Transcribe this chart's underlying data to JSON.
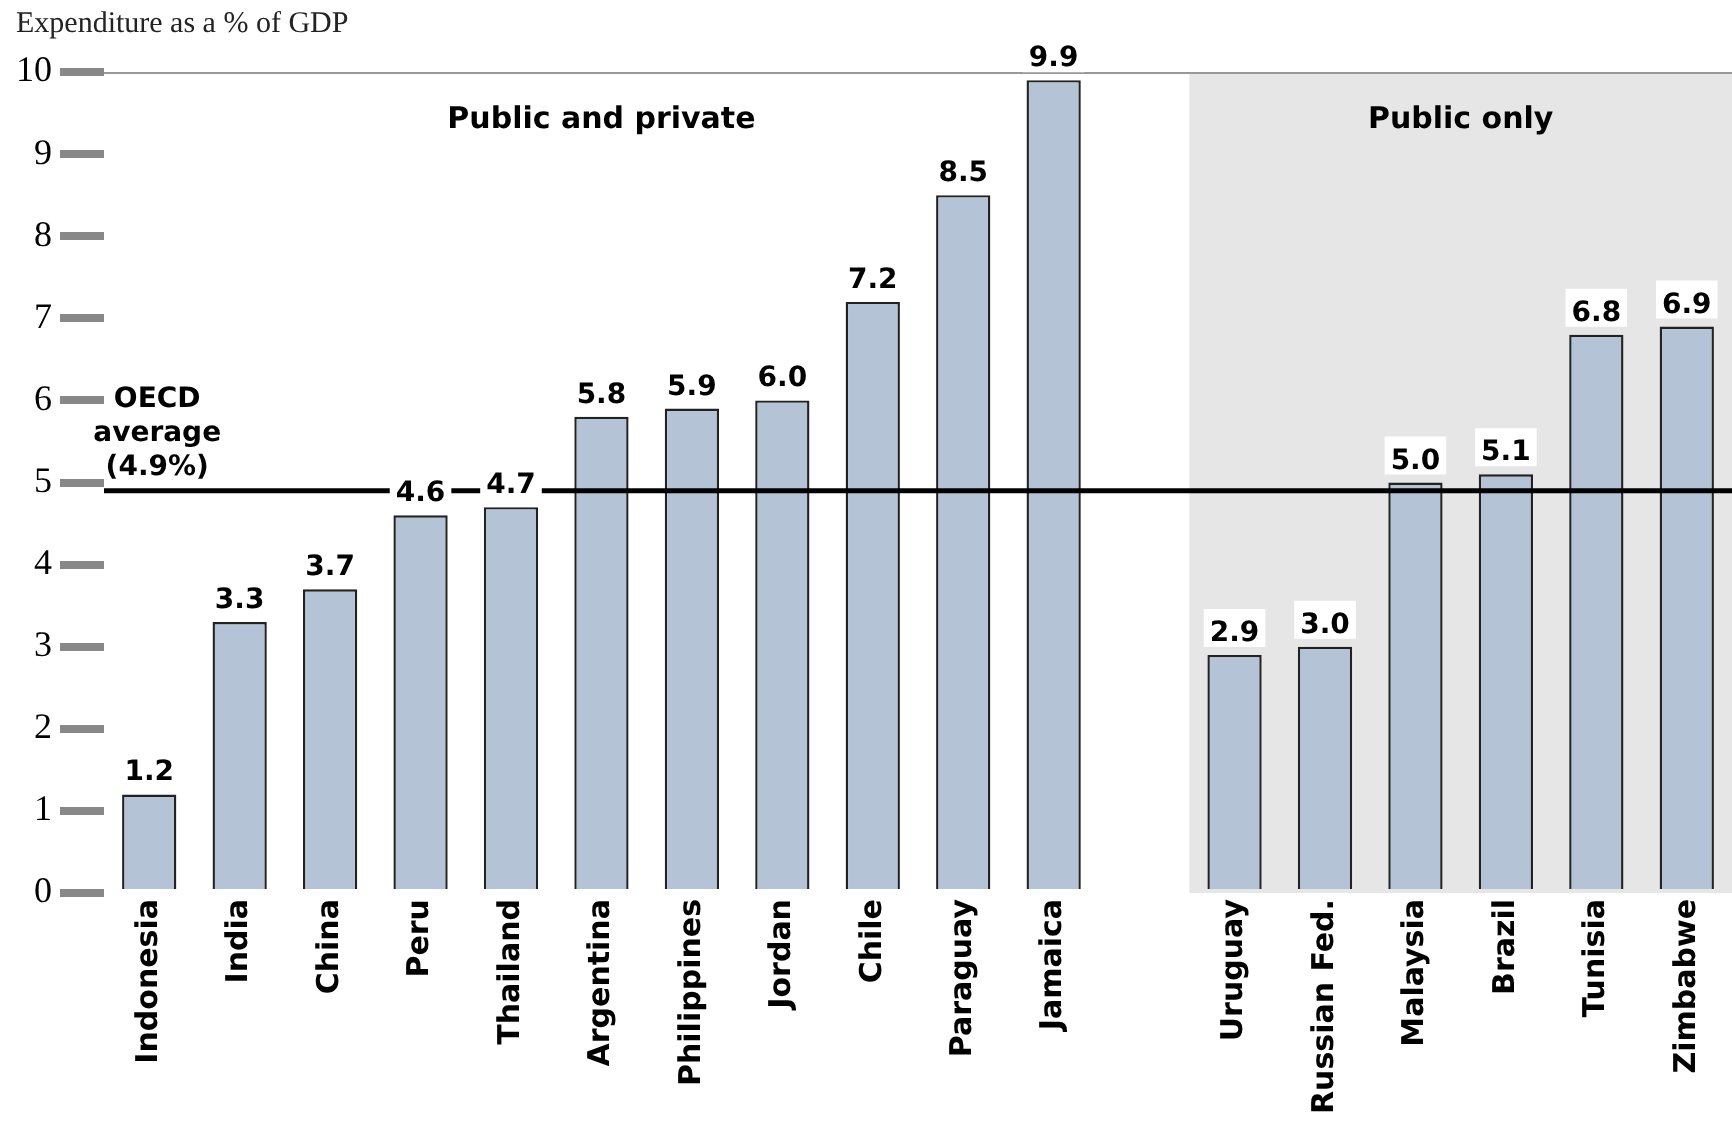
{
  "chart_data": {
    "type": "bar",
    "ylabel": "Expenditure as a % of GDP",
    "categories": [
      "Indonesia",
      "India",
      "China",
      "Peru",
      "Thailand",
      "Argentina",
      "Philippines",
      "Jordan",
      "Chile",
      "Paraguay",
      "Jamaica",
      null,
      "Uruguay",
      "Russian Fed.",
      "Malaysia",
      "Brazil",
      "Tunisia",
      "Zimbabwe"
    ],
    "values": [
      1.2,
      3.3,
      3.7,
      4.6,
      4.7,
      5.8,
      5.9,
      6.0,
      7.2,
      8.5,
      9.9,
      null,
      2.9,
      3.0,
      5.0,
      5.1,
      6.8,
      6.9
    ],
    "color": "#b4c3d6",
    "value_labels": [
      "1.2",
      "3.3",
      "3.7",
      "4.6",
      "4.7",
      "5.8",
      "5.9",
      "6.0",
      "7.2",
      "8.5",
      "9.9",
      null,
      "2.9",
      "3.0",
      "5.0",
      "5.1",
      "6.8",
      "6.9"
    ],
    "ylim": [
      0,
      10
    ],
    "yticks": [
      0,
      1,
      2,
      3,
      4,
      5,
      6,
      7,
      8,
      9,
      10
    ],
    "grid": false,
    "legend": false,
    "ref_lines": [
      {
        "axis": "y",
        "value": 4.9,
        "label": "OECD average (4.9%)",
        "color": "#000000"
      }
    ],
    "bands": [
      {
        "axis": "x",
        "from": "Uruguay",
        "to": "Zimbabwe",
        "label": "Public only",
        "color": "#e6e6e6"
      }
    ],
    "annotations": [
      "Public and private"
    ]
  }
}
